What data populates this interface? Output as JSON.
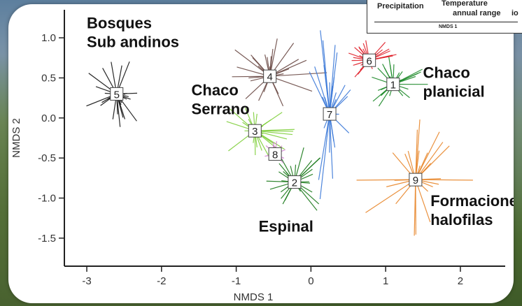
{
  "chart_data": {
    "type": "scatter",
    "subtype": "ordination-spider-plot",
    "xlabel": "NMDS 1",
    "ylabel": "NMDS 2",
    "xlim": [
      -3.3,
      2.6
    ],
    "ylim": [
      -1.85,
      1.35
    ],
    "xticks": [
      -3,
      -2,
      -1,
      0,
      1,
      2
    ],
    "yticks": [
      1.0,
      0.5,
      0.0,
      -0.5,
      -1.0,
      -1.5
    ],
    "ytick_labels": [
      "1.0",
      "0.5",
      "0.0",
      "-0.5",
      "-1.0",
      "-1.5"
    ],
    "grid": false,
    "groups": [
      {
        "id": "1",
        "centroid": [
          1.1,
          0.42
        ],
        "color": "#1e8a2a",
        "spread": [
          0.45,
          0.35
        ]
      },
      {
        "id": "2",
        "centroid": [
          -0.22,
          -0.8
        ],
        "color": "#1a7a1a",
        "spread": [
          0.45,
          0.45
        ]
      },
      {
        "id": "3",
        "centroid": [
          -0.75,
          -0.16
        ],
        "color": "#7fcf3a",
        "spread": [
          0.5,
          0.35
        ]
      },
      {
        "id": "4",
        "centroid": [
          -0.55,
          0.52
        ],
        "color": "#6b4a45",
        "spread": [
          0.7,
          0.45
        ]
      },
      {
        "id": "5",
        "centroid": [
          -2.6,
          0.3
        ],
        "color": "#111111",
        "spread": [
          0.45,
          0.4
        ]
      },
      {
        "id": "6",
        "centroid": [
          0.78,
          0.72
        ],
        "color": "#e0202a",
        "spread": [
          0.35,
          0.25
        ]
      },
      {
        "id": "7",
        "centroid": [
          0.25,
          0.05
        ],
        "color": "#3a78d8",
        "spread": [
          0.35,
          1.1
        ]
      },
      {
        "id": "8",
        "centroid": [
          -0.48,
          -0.45
        ],
        "color": "#d080d0",
        "spread": [
          0.15,
          0.15
        ]
      },
      {
        "id": "9",
        "centroid": [
          1.4,
          -0.77
        ],
        "color": "#e8862a",
        "spread": [
          0.8,
          0.7
        ]
      }
    ],
    "annotations": [
      {
        "text": "Bosques\nSub andinos",
        "x": -3.0,
        "y": 1.12
      },
      {
        "text": "Chaco\nSerrano",
        "x": -1.6,
        "y": 0.28
      },
      {
        "text": "Chaco\nplanicial",
        "x": 1.5,
        "y": 0.5
      },
      {
        "text": "Espinal",
        "x": -0.7,
        "y": -1.42
      },
      {
        "text": "Formaciones\nhalofilas",
        "x": 1.6,
        "y": -1.1
      }
    ]
  },
  "inset": {
    "line1": "Precipitation",
    "line1b": "Temperature",
    "line2": "annual range",
    "xlabel": "NMDS 1",
    "edge": "io"
  }
}
